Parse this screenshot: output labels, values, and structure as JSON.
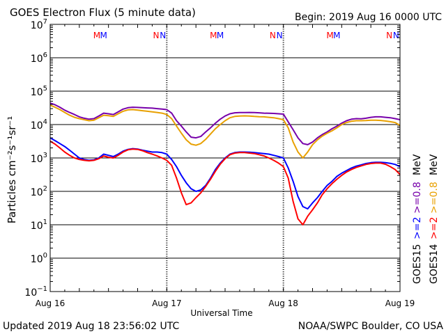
{
  "header": {
    "title": "GOES Electron Flux (5 minute data)",
    "begin": "Begin: 2019 Aug 16 0000 UTC"
  },
  "footer": {
    "updated": "Updated 2019 Aug 18 23:56:02 UTC",
    "credit": "NOAA/SWPC Boulder, CO USA"
  },
  "colors": {
    "goes15_2mev": "#0000ff",
    "goes14_2mev": "#ff0000",
    "goes15_08mev": "#7700aa",
    "goes14_08mev": "#e8a000",
    "grid": "#000000",
    "background": "#ffffff"
  },
  "chart_data": {
    "type": "line",
    "title": "GOES Electron Flux (5 minute data)",
    "xlabel": "Universal Time",
    "ylabel": "Particles cm⁻²s⁻¹sr⁻¹",
    "y_scale": "log",
    "ylim": [
      0.1,
      10000000
    ],
    "xlim": [
      0,
      72
    ],
    "x_unit": "hours since 2019 Aug 16 0000 UTC",
    "x_ticks": [
      {
        "x": 0,
        "label": "Aug 16"
      },
      {
        "x": 24,
        "label": "Aug 17"
      },
      {
        "x": 48,
        "label": "Aug 18"
      },
      {
        "x": 72,
        "label": "Aug 19"
      }
    ],
    "y_ticks": [
      {
        "exp": -1,
        "base": "10",
        "sup": "−1"
      },
      {
        "exp": 0,
        "base": "10",
        "sup": "0"
      },
      {
        "exp": 1,
        "base": "10",
        "sup": "1"
      },
      {
        "exp": 2,
        "base": "10",
        "sup": "2"
      },
      {
        "exp": 3,
        "base": "10",
        "sup": "3"
      },
      {
        "exp": 4,
        "base": "10",
        "sup": "4"
      },
      {
        "exp": 5,
        "base": "10",
        "sup": "5"
      },
      {
        "exp": 6,
        "base": "10",
        "sup": "6"
      },
      {
        "exp": 7,
        "base": "10",
        "sup": "7"
      }
    ],
    "threshold": 1000,
    "grid": true,
    "legend": [
      {
        "text": "GOES15",
        "color": "#000000"
      },
      {
        "text": ">=2",
        "color": "#0000ff"
      },
      {
        "text": ">=0.8",
        "color": "#7700aa"
      },
      {
        "text": "MeV",
        "color": "#000000"
      },
      {
        "text": "GOES14",
        "color": "#000000"
      },
      {
        "text": ">=2",
        "color": "#ff0000"
      },
      {
        "text": ">=0.8",
        "color": "#e8a000"
      },
      {
        "text": "MeV",
        "color": "#000000"
      }
    ],
    "markers": [
      {
        "x": 9.6,
        "text": "M",
        "color": "#ff0000"
      },
      {
        "x": 11.0,
        "text": "M",
        "color": "#0000ff"
      },
      {
        "x": 21.8,
        "text": "N",
        "color": "#ff0000"
      },
      {
        "x": 23.2,
        "text": "N",
        "color": "#0000ff"
      },
      {
        "x": 33.6,
        "text": "M",
        "color": "#ff0000"
      },
      {
        "x": 35.0,
        "text": "M",
        "color": "#0000ff"
      },
      {
        "x": 45.8,
        "text": "N",
        "color": "#ff0000"
      },
      {
        "x": 47.2,
        "text": "N",
        "color": "#0000ff"
      },
      {
        "x": 57.6,
        "text": "M",
        "color": "#ff0000"
      },
      {
        "x": 59.0,
        "text": "M",
        "color": "#0000ff"
      },
      {
        "x": 69.8,
        "text": "N",
        "color": "#ff0000"
      },
      {
        "x": 71.2,
        "text": "N",
        "color": "#0000ff"
      }
    ],
    "series": [
      {
        "name": "GOES15 >=0.8 MeV",
        "color": "#7700aa",
        "x": [
          0,
          1,
          2,
          3,
          4,
          5,
          6,
          7,
          8,
          9,
          10,
          11,
          12,
          13,
          14,
          15,
          16,
          17,
          18,
          19,
          20,
          21,
          22,
          23,
          24,
          25,
          26,
          27,
          28,
          29,
          30,
          31,
          32,
          33,
          34,
          35,
          36,
          37,
          38,
          39,
          40,
          41,
          42,
          43,
          44,
          45,
          46,
          47,
          48,
          49,
          50,
          51,
          52,
          53,
          54,
          55,
          56,
          57,
          58,
          59,
          60,
          61,
          62,
          63,
          64,
          65,
          66,
          67,
          68,
          69,
          70,
          71,
          72
        ],
        "y": [
          44000,
          39000,
          33000,
          27000,
          23000,
          20000,
          17000,
          15500,
          14500,
          15000,
          18000,
          22000,
          21000,
          20000,
          24000,
          29000,
          32000,
          33000,
          32500,
          32000,
          31500,
          31000,
          30000,
          29000,
          28000,
          22000,
          13000,
          9000,
          6000,
          4200,
          4000,
          4400,
          6000,
          8000,
          11000,
          14500,
          18000,
          21000,
          22500,
          22800,
          22900,
          23000,
          22800,
          22500,
          22000,
          21800,
          21500,
          21000,
          20500,
          12000,
          7000,
          4000,
          2700,
          2500,
          3000,
          4000,
          5000,
          6000,
          7500,
          9000,
          11000,
          13000,
          14500,
          15000,
          14800,
          15500,
          16500,
          17000,
          17000,
          16500,
          16000,
          15000,
          14000
        ]
      },
      {
        "name": "GOES14 >=0.8 MeV",
        "color": "#e8a000",
        "x": [
          0,
          1,
          2,
          3,
          4,
          5,
          6,
          7,
          8,
          9,
          10,
          11,
          12,
          13,
          14,
          15,
          16,
          17,
          18,
          19,
          20,
          21,
          22,
          23,
          24,
          25,
          26,
          27,
          28,
          29,
          30,
          31,
          32,
          33,
          34,
          35,
          36,
          37,
          38,
          39,
          40,
          41,
          42,
          43,
          44,
          45,
          46,
          47,
          48,
          49,
          50,
          51,
          52,
          53,
          54,
          55,
          56,
          57,
          58,
          59,
          60,
          61,
          62,
          63,
          64,
          65,
          66,
          67,
          68,
          69,
          70,
          71,
          72
        ],
        "y": [
          38000,
          33000,
          28000,
          23000,
          19000,
          16500,
          15000,
          14000,
          13000,
          13500,
          16000,
          19000,
          18500,
          17500,
          21000,
          25000,
          27500,
          28000,
          27000,
          26000,
          25000,
          24000,
          23000,
          22000,
          20000,
          15000,
          9000,
          5500,
          3500,
          2600,
          2400,
          2700,
          3600,
          5200,
          7500,
          10000,
          13000,
          16000,
          17500,
          18000,
          18200,
          18000,
          17500,
          17200,
          17000,
          16500,
          16000,
          15000,
          14000,
          8000,
          3000,
          1500,
          1000,
          1500,
          2500,
          3500,
          4500,
          5500,
          6500,
          8000,
          10000,
          11500,
          12500,
          13000,
          13000,
          13200,
          13500,
          13500,
          13300,
          12800,
          12200,
          11500,
          9500
        ]
      },
      {
        "name": "GOES15 >=2 MeV",
        "color": "#0000ff",
        "x": [
          0,
          1,
          2,
          3,
          4,
          5,
          6,
          7,
          8,
          9,
          10,
          11,
          12,
          13,
          14,
          15,
          16,
          17,
          18,
          19,
          20,
          21,
          22,
          23,
          24,
          25,
          26,
          27,
          28,
          29,
          30,
          31,
          32,
          33,
          34,
          35,
          36,
          37,
          38,
          39,
          40,
          41,
          42,
          43,
          44,
          45,
          46,
          47,
          48,
          49,
          50,
          51,
          52,
          53,
          54,
          55,
          56,
          57,
          58,
          59,
          60,
          61,
          62,
          63,
          64,
          65,
          66,
          67,
          68,
          69,
          70,
          71,
          72
        ],
        "y": [
          4000,
          3300,
          2700,
          2200,
          1700,
          1300,
          1000,
          900,
          850,
          880,
          1000,
          1300,
          1200,
          1100,
          1300,
          1600,
          1800,
          1900,
          1850,
          1700,
          1600,
          1500,
          1500,
          1450,
          1300,
          900,
          550,
          300,
          180,
          120,
          100,
          110,
          150,
          250,
          450,
          700,
          1000,
          1300,
          1450,
          1500,
          1500,
          1480,
          1450,
          1400,
          1350,
          1300,
          1200,
          1100,
          1000,
          500,
          200,
          70,
          35,
          30,
          45,
          65,
          100,
          150,
          200,
          280,
          350,
          420,
          500,
          570,
          620,
          680,
          720,
          740,
          740,
          720,
          690,
          640,
          550
        ]
      },
      {
        "name": "GOES14 >=2 MeV",
        "color": "#ff0000",
        "x": [
          0,
          1,
          2,
          3,
          4,
          5,
          6,
          7,
          8,
          9,
          10,
          11,
          12,
          13,
          14,
          15,
          16,
          17,
          18,
          19,
          20,
          21,
          22,
          23,
          24,
          25,
          26,
          27,
          28,
          29,
          30,
          31,
          32,
          33,
          34,
          35,
          36,
          37,
          38,
          39,
          40,
          41,
          42,
          43,
          44,
          45,
          46,
          47,
          48,
          49,
          50,
          51,
          52,
          53,
          54,
          55,
          56,
          57,
          58,
          59,
          60,
          61,
          62,
          63,
          64,
          65,
          66,
          67,
          68,
          69,
          70,
          71,
          72
        ],
        "y": [
          3200,
          2600,
          2000,
          1500,
          1200,
          1000,
          900,
          850,
          820,
          850,
          950,
          1150,
          1050,
          1000,
          1200,
          1500,
          1750,
          1850,
          1800,
          1650,
          1450,
          1300,
          1150,
          1000,
          850,
          600,
          250,
          90,
          40,
          45,
          65,
          90,
          140,
          230,
          400,
          650,
          950,
          1250,
          1400,
          1450,
          1450,
          1400,
          1350,
          1250,
          1150,
          1000,
          850,
          700,
          550,
          250,
          50,
          15,
          10,
          18,
          28,
          45,
          80,
          120,
          170,
          230,
          300,
          380,
          450,
          520,
          580,
          640,
          680,
          700,
          700,
          650,
          550,
          450,
          320
        ]
      }
    ]
  }
}
